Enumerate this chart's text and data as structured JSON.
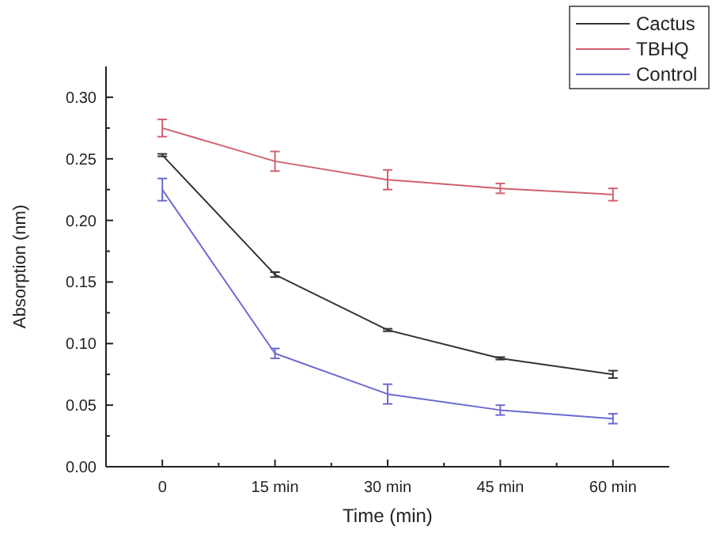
{
  "chart_data": {
    "type": "line",
    "xlabel": "Time (min)",
    "ylabel": "Absorption (nm)",
    "x": [
      0,
      15,
      30,
      45,
      60
    ],
    "xlim": [
      -7.5,
      67.5
    ],
    "xticks": [
      {
        "value": 0,
        "label": "0"
      },
      {
        "value": 7.5,
        "label": null
      },
      {
        "value": 15,
        "label": "15 min"
      },
      {
        "value": 22.5,
        "label": null
      },
      {
        "value": 30,
        "label": "30 min"
      },
      {
        "value": 37.5,
        "label": null
      },
      {
        "value": 45,
        "label": "45 min"
      },
      {
        "value": 52.5,
        "label": null
      },
      {
        "value": 60,
        "label": "60 min"
      }
    ],
    "ylim": [
      0,
      0.325
    ],
    "yticks": [
      {
        "value": 0,
        "label": "0.00"
      },
      {
        "value": 0.025,
        "label": null
      },
      {
        "value": 0.05,
        "label": "0.05"
      },
      {
        "value": 0.075,
        "label": null
      },
      {
        "value": 0.1,
        "label": "0.10"
      },
      {
        "value": 0.125,
        "label": null
      },
      {
        "value": 0.15,
        "label": "0.15"
      },
      {
        "value": 0.175,
        "label": null
      },
      {
        "value": 0.2,
        "label": "0.20"
      },
      {
        "value": 0.225,
        "label": null
      },
      {
        "value": 0.25,
        "label": "0.25"
      },
      {
        "value": 0.275,
        "label": null
      },
      {
        "value": 0.3,
        "label": "0.30"
      }
    ],
    "grid": false,
    "legend": "top right",
    "marker": "none",
    "line_style": "solid",
    "series": [
      {
        "name": "Cactus",
        "color": "#333333",
        "values": [
          0.253,
          0.156,
          0.111,
          0.088,
          0.075
        ],
        "errors": [
          0.001,
          0.002,
          0.001,
          0.001,
          0.003
        ]
      },
      {
        "name": "TBHQ",
        "color": "#d0606e",
        "values": [
          0.275,
          0.248,
          0.233,
          0.226,
          0.221
        ],
        "errors": [
          0.007,
          0.008,
          0.008,
          0.004,
          0.005
        ]
      },
      {
        "name": "Control",
        "color": "#6a6ad0",
        "values": [
          0.225,
          0.092,
          0.059,
          0.046,
          0.039
        ],
        "errors": [
          0.009,
          0.004,
          0.008,
          0.004,
          0.004
        ]
      }
    ]
  }
}
